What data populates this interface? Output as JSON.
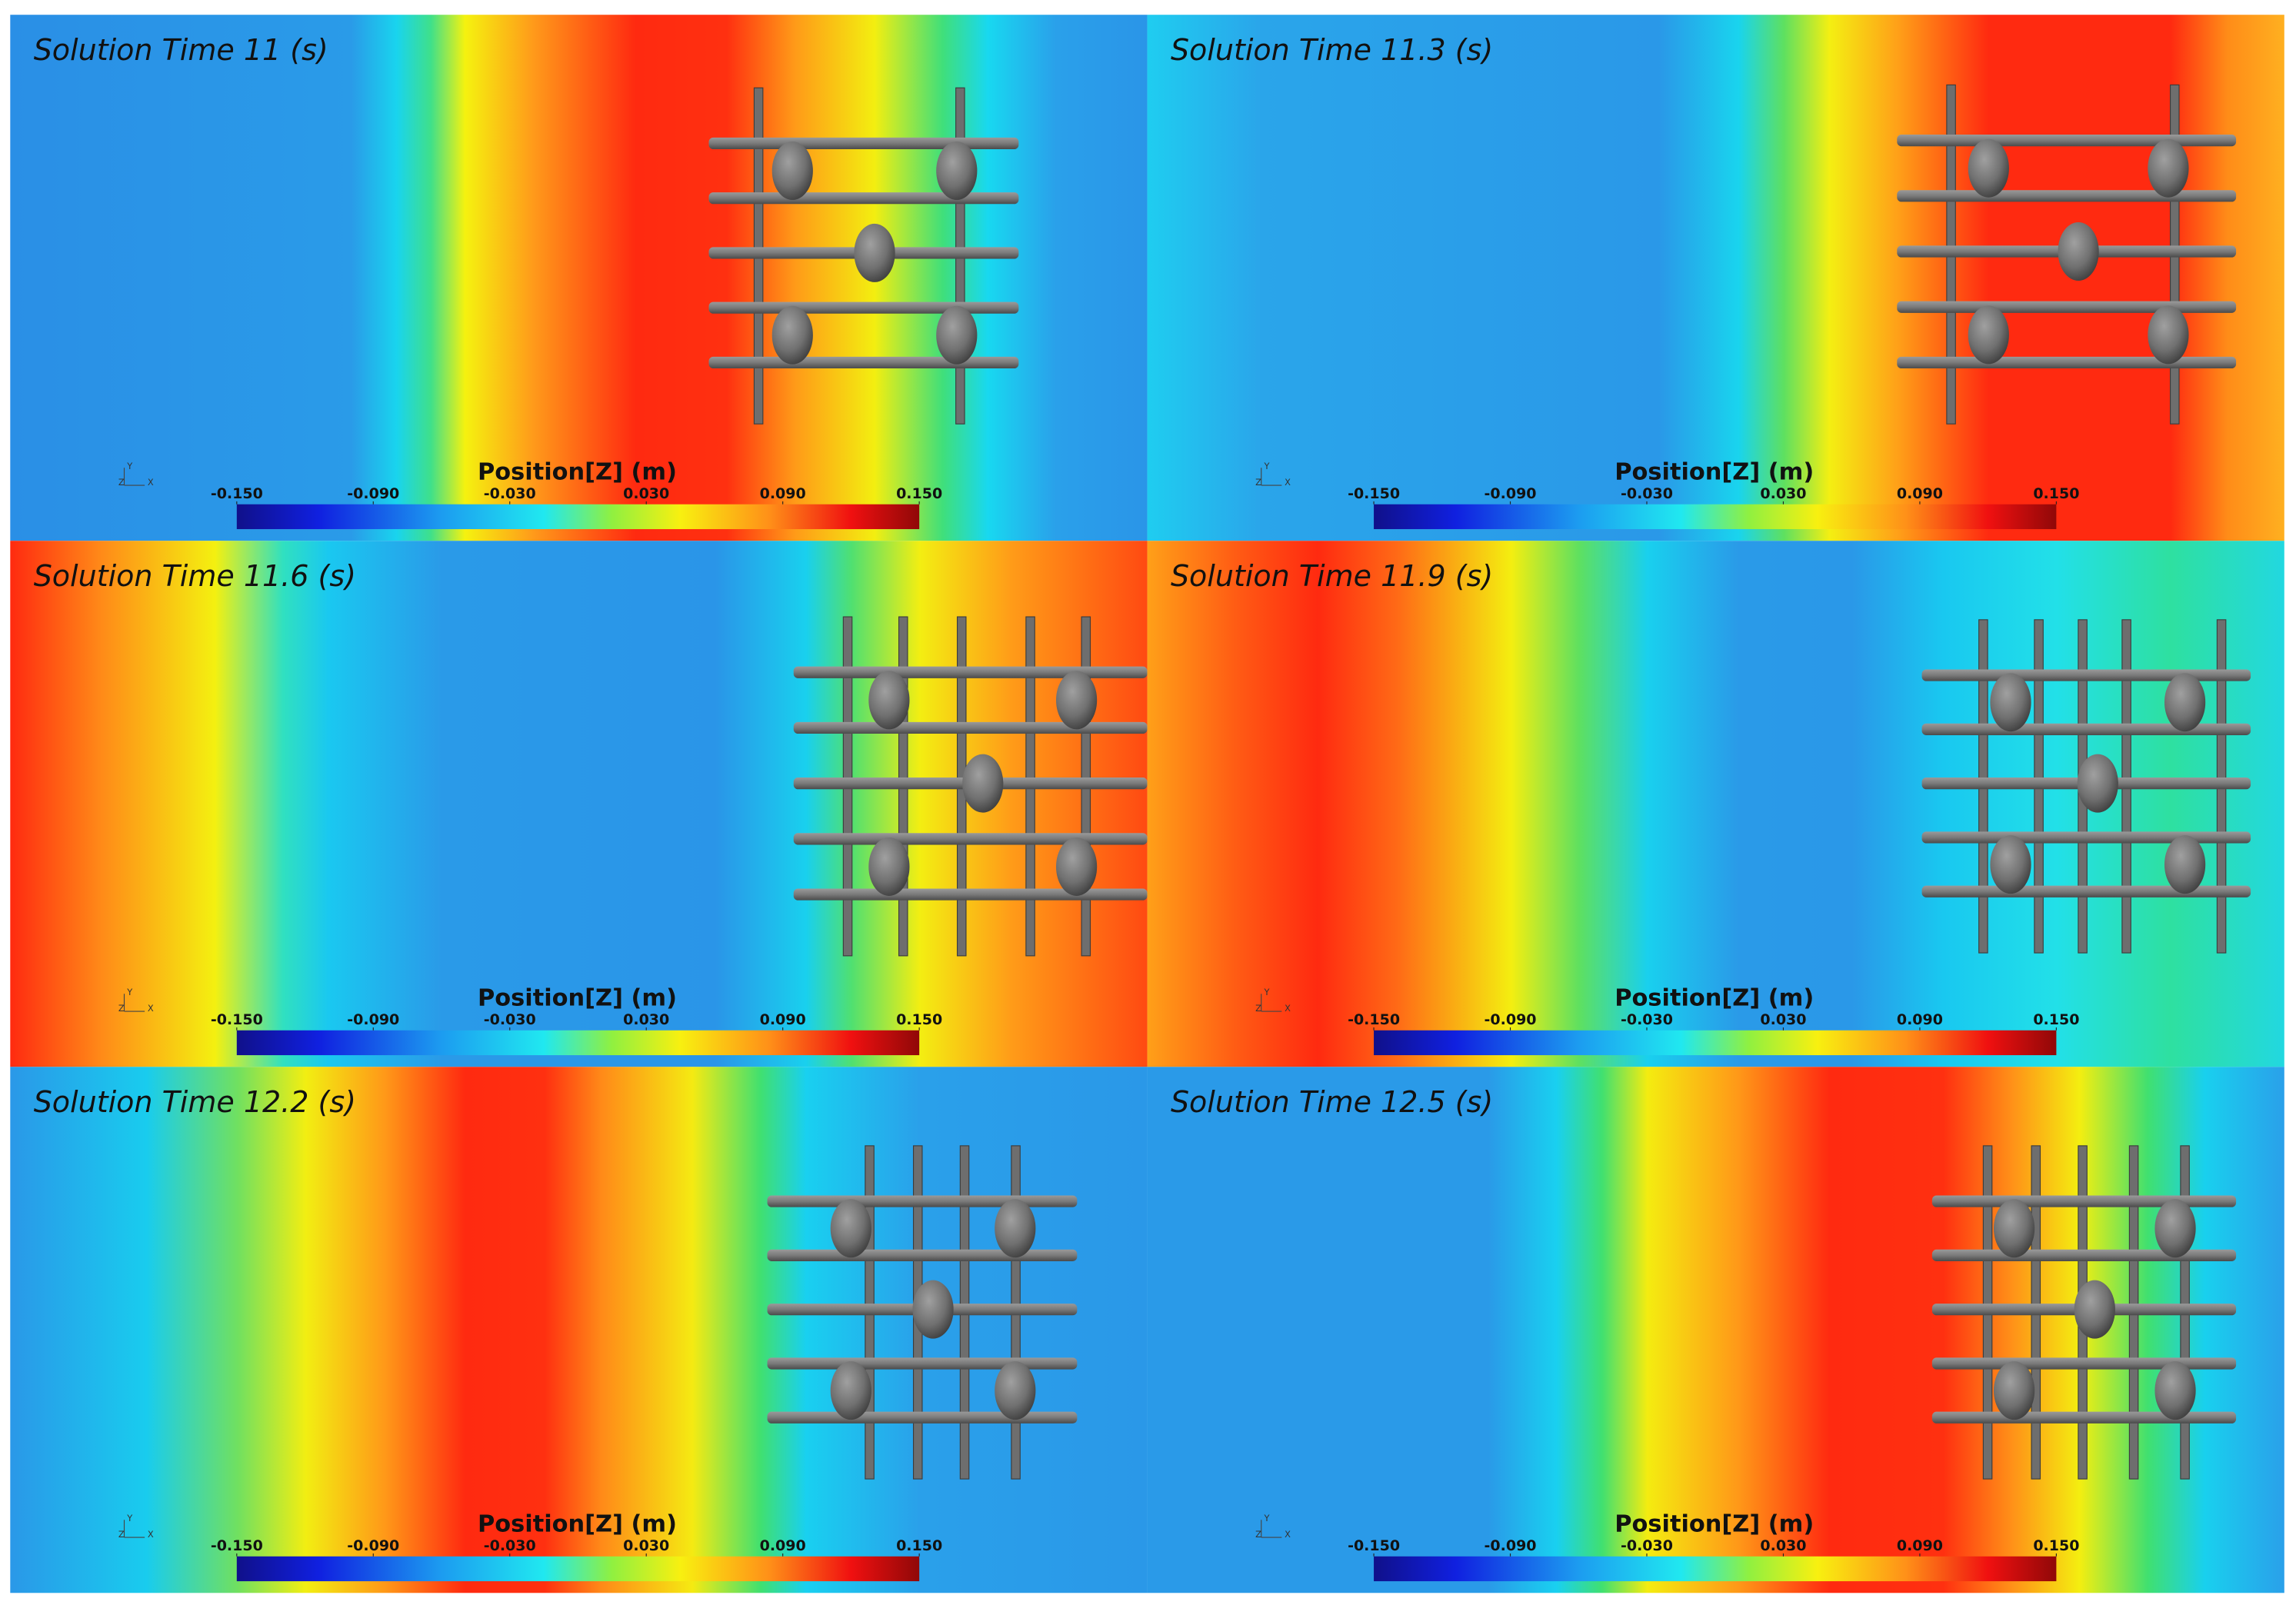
{
  "panels": [
    {
      "title": "Solution Time 11 (s)",
      "colorbar": {
        "title": "Position[Z] (m)",
        "ticks": [
          {
            "value": -0.15,
            "label": "-0.150"
          },
          {
            "value": -0.09,
            "label": "-0.090"
          },
          {
            "value": -0.03,
            "label": "-0.030"
          },
          {
            "value": 0.03,
            "label": "0.030"
          },
          {
            "value": 0.09,
            "label": "0.090"
          },
          {
            "value": 0.15,
            "label": "0.150"
          }
        ]
      },
      "triad": [
        "Y",
        "Z",
        "X"
      ]
    },
    {
      "title": "Solution Time 11.3 (s)",
      "colorbar": {
        "title": "Position[Z] (m)",
        "ticks": [
          {
            "value": -0.15,
            "label": "-0.150"
          },
          {
            "value": -0.09,
            "label": "-0.090"
          },
          {
            "value": -0.03,
            "label": "-0.030"
          },
          {
            "value": 0.03,
            "label": "0.030"
          },
          {
            "value": 0.09,
            "label": "0.090"
          },
          {
            "value": 0.15,
            "label": "0.150"
          }
        ]
      },
      "triad": [
        "Y",
        "Z",
        "X"
      ]
    },
    {
      "title": "Solution Time 11.6 (s)",
      "colorbar": {
        "title": "Position[Z] (m)",
        "ticks": [
          {
            "value": -0.15,
            "label": "-0.150"
          },
          {
            "value": -0.09,
            "label": "-0.090"
          },
          {
            "value": -0.03,
            "label": "-0.030"
          },
          {
            "value": 0.03,
            "label": "0.030"
          },
          {
            "value": 0.09,
            "label": "0.090"
          },
          {
            "value": 0.15,
            "label": "0.150"
          }
        ]
      },
      "triad": [
        "Y",
        "Z",
        "X"
      ]
    },
    {
      "title": "Solution Time 11.9 (s)",
      "colorbar": {
        "title": "Position[Z] (m)",
        "ticks": [
          {
            "value": -0.15,
            "label": "-0.150"
          },
          {
            "value": -0.09,
            "label": "-0.090"
          },
          {
            "value": -0.03,
            "label": "-0.030"
          },
          {
            "value": 0.03,
            "label": "0.030"
          },
          {
            "value": 0.09,
            "label": "0.090"
          },
          {
            "value": 0.15,
            "label": "0.150"
          }
        ]
      },
      "triad": [
        "Y",
        "Z",
        "X"
      ]
    },
    {
      "title": "Solution Time 12.2 (s)",
      "colorbar": {
        "title": "Position[Z] (m)",
        "ticks": [
          {
            "value": -0.15,
            "label": "-0.150"
          },
          {
            "value": -0.09,
            "label": "-0.090"
          },
          {
            "value": -0.03,
            "label": "-0.030"
          },
          {
            "value": 0.03,
            "label": "0.030"
          },
          {
            "value": 0.09,
            "label": "0.090"
          },
          {
            "value": 0.15,
            "label": "0.150"
          }
        ]
      },
      "triad": [
        "Y",
        "Z",
        "X"
      ]
    },
    {
      "title": "Solution Time 12.5 (s)",
      "colorbar": {
        "title": "Position[Z] (m)",
        "ticks": [
          {
            "value": -0.15,
            "label": "-0.150"
          },
          {
            "value": -0.09,
            "label": "-0.090"
          },
          {
            "value": -0.03,
            "label": "-0.030"
          },
          {
            "value": 0.03,
            "label": "0.030"
          },
          {
            "value": 0.09,
            "label": "0.090"
          },
          {
            "value": 0.15,
            "label": "0.150"
          }
        ]
      },
      "triad": [
        "Y",
        "Z",
        "X"
      ]
    }
  ]
}
